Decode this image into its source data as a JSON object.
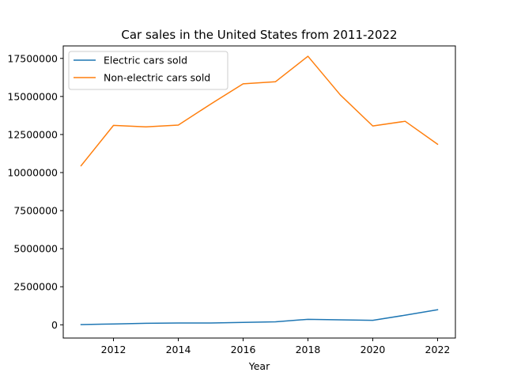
{
  "chart_data": {
    "type": "line",
    "title": "Car sales in the United States from 2011-2022",
    "xlabel": "Year",
    "ylabel": "",
    "x": [
      2011,
      2012,
      2013,
      2014,
      2015,
      2016,
      2017,
      2018,
      2019,
      2020,
      2021,
      2022
    ],
    "xlim": [
      2010.45,
      2022.55
    ],
    "ylim": [
      -870000,
      18320000
    ],
    "xticks": [
      2012,
      2014,
      2016,
      2018,
      2020,
      2022
    ],
    "yticks": [
      0,
      2500000,
      5000000,
      7500000,
      10000000,
      12500000,
      15000000,
      17500000
    ],
    "legend_position": "top-left",
    "grid": false,
    "series": [
      {
        "name": "Electric cars sold",
        "color": "#1f77b4",
        "values": [
          17000,
          53000,
          97000,
          118000,
          115000,
          159000,
          195000,
          361000,
          327000,
          296000,
          631000,
          990000
        ]
      },
      {
        "name": "Non-electric cars sold",
        "color": "#ff7f0e",
        "values": [
          10450000,
          13100000,
          13000000,
          13120000,
          14500000,
          15830000,
          15970000,
          17640000,
          15100000,
          13060000,
          13370000,
          11860000
        ]
      }
    ]
  }
}
